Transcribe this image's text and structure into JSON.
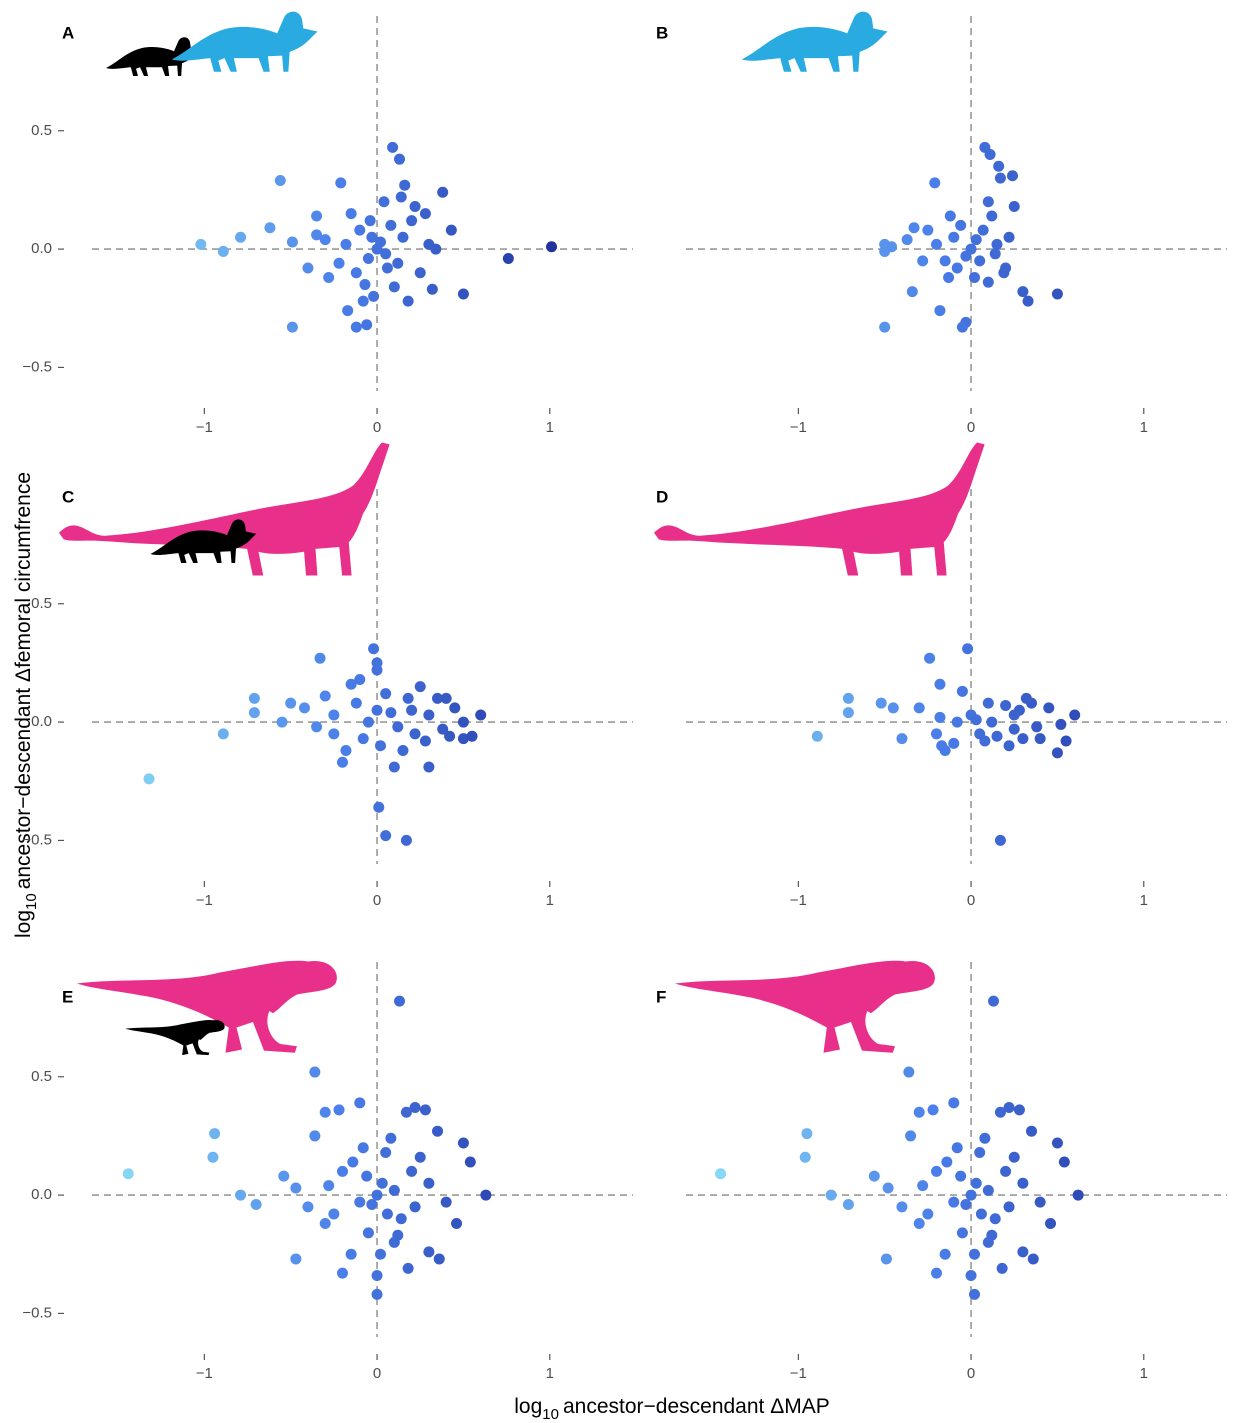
{
  "x_label": {
    "pre": "log",
    "sub": "10",
    "text": "ancestor−descendant ΔMAP"
  },
  "y_label": {
    "pre": "log",
    "sub": "10",
    "text": "ancestor−descendant Δfemoral circumfrence"
  },
  "chart_data": [
    {
      "type": "scatter",
      "panel_label": "A",
      "x": [
        -1.02,
        -0.89,
        -0.79,
        -0.62,
        -0.56,
        -0.49,
        -0.49,
        -0.35,
        -0.21,
        -0.17,
        -0.12,
        -0.06,
        0.09,
        0.13,
        0.16,
        0.38,
        0.43,
        0.32,
        0.5,
        0.76,
        1.01,
        0.34,
        0,
        0.02,
        -0.03,
        0.05,
        -0.05,
        0.08,
        -0.1,
        0.12,
        -0.12,
        0.15,
        -0.18,
        0.2,
        -0.22,
        0.25,
        -0.3,
        0.22,
        -0.28,
        0.1,
        -0.07,
        0.04,
        -0.02,
        0.3,
        -0.4,
        -0.35,
        0.18,
        -0.15,
        0.06,
        -0.04,
        0.14,
        0.28,
        -0.08
      ],
      "y": [
        0.02,
        -0.01,
        0.05,
        0.09,
        0.29,
        0.03,
        -0.33,
        0.14,
        0.28,
        -0.26,
        -0.33,
        -0.32,
        0.43,
        0.38,
        0.27,
        0.24,
        0.08,
        -0.17,
        -0.19,
        -0.04,
        0.01,
        0,
        0,
        0.03,
        0.05,
        -0.02,
        -0.04,
        0.1,
        0.08,
        -0.06,
        -0.1,
        0.05,
        0.02,
        0.12,
        -0.06,
        -0.1,
        0.04,
        0.18,
        -0.12,
        -0.16,
        -0.15,
        0.2,
        -0.2,
        0.02,
        -0.08,
        0.06,
        -0.22,
        0.15,
        -0.08,
        0.12,
        0.22,
        0.15,
        -0.22
      ],
      "xlim": [
        -1.65,
        1.25
      ],
      "ylim": [
        -0.6,
        0.85
      ],
      "xticks": [
        {
          "value": -1,
          "label": "−1"
        },
        0,
        1
      ],
      "yticks": [
        {
          "value": -0.5,
          "label": "−0.5"
        },
        {
          "value": 0,
          "label": "0.0"
        },
        0.5
      ],
      "reference_lines": {
        "x": 0,
        "y": 0
      },
      "colors": [
        "#90e6f6",
        "#4a7ee9",
        "#1a2490"
      ]
    },
    {
      "type": "scatter",
      "panel_label": "B",
      "x": [
        -0.5,
        -0.5,
        -0.5,
        -0.46,
        -0.37,
        -0.33,
        -0.21,
        -0.34,
        -0.18,
        -0.13,
        -0.03,
        -0.05,
        0.08,
        0.11,
        0.16,
        0.24,
        0.25,
        0.17,
        0.19,
        0.3,
        0.33,
        0.5,
        0.2,
        0.1,
        0.12,
        -0.1,
        -0.15,
        -0.2,
        -0.25,
        0,
        0.03,
        -0.03,
        0.05,
        0.07,
        -0.06,
        0.14,
        -0.08,
        0.02,
        0.1,
        -0.12,
        0.22,
        0.15,
        -0.28
      ],
      "y": [
        0.02,
        -0.01,
        -0.33,
        0.01,
        0.04,
        0.09,
        0.28,
        -0.18,
        -0.26,
        -0.12,
        -0.31,
        -0.33,
        0.43,
        0.4,
        0.35,
        0.31,
        0.18,
        0.3,
        -0.1,
        -0.18,
        -0.22,
        -0.19,
        -0.08,
        0.2,
        0.14,
        0.05,
        -0.05,
        0.02,
        0.08,
        0,
        0.04,
        -0.03,
        -0.05,
        0.08,
        0.1,
        -0.02,
        -0.08,
        -0.12,
        -0.14,
        0.14,
        0.05,
        0.02,
        -0.05
      ],
      "xlim": [
        -1.65,
        1.25
      ],
      "ylim": [
        -0.6,
        0.85
      ],
      "xticks": [
        {
          "value": -1,
          "label": "−1"
        },
        0,
        1
      ],
      "reference_lines": {
        "x": 0,
        "y": 0
      },
      "colors": [
        "#90e6f6",
        "#4a7ee9",
        "#1a2490"
      ]
    },
    {
      "type": "scatter",
      "panel_label": "C",
      "x": [
        -1.32,
        -0.89,
        -0.71,
        -0.71,
        -0.55,
        -0.5,
        -0.42,
        -0.33,
        -0.3,
        -0.35,
        -0.25,
        -0.2,
        -0.18,
        -0.15,
        -0.1,
        -0.12,
        -0.05,
        -0.02,
        0,
        0,
        0.01,
        0.05,
        0.17,
        0.1,
        0.05,
        0.08,
        0.12,
        0.18,
        0.2,
        0.22,
        0.25,
        0.3,
        0.3,
        0.35,
        0.38,
        0.4,
        0.45,
        0.5,
        0.5,
        0.55,
        0.6,
        -0.08,
        0.02,
        0.15,
        -0.25,
        0,
        0.28,
        0.42
      ],
      "y": [
        -0.24,
        -0.05,
        0.1,
        0.04,
        0,
        0.08,
        0.06,
        0.27,
        0.11,
        -0.02,
        -0.05,
        -0.17,
        -0.12,
        0.16,
        0.18,
        0.08,
        0,
        0.31,
        0.25,
        0.22,
        -0.36,
        -0.48,
        -0.5,
        -0.19,
        0.12,
        0.04,
        -0.02,
        0.1,
        0.05,
        -0.05,
        0.15,
        0.03,
        -0.19,
        0.1,
        -0.03,
        0.1,
        0.06,
        0,
        -0.07,
        -0.06,
        0.03,
        -0.07,
        -0.1,
        -0.12,
        0.03,
        0.05,
        -0.08,
        -0.06
      ],
      "xlim": [
        -1.65,
        1.25
      ],
      "ylim": [
        -0.6,
        0.85
      ],
      "xticks": [
        {
          "value": -1,
          "label": "−1"
        },
        0,
        1
      ],
      "yticks": [
        {
          "value": -0.5,
          "label": "−0.5"
        },
        {
          "value": 0,
          "label": "0.0"
        },
        0.5
      ],
      "reference_lines": {
        "x": 0,
        "y": 0
      },
      "colors": [
        "#90e6f6",
        "#4a7ee9",
        "#1a2490"
      ]
    },
    {
      "type": "scatter",
      "panel_label": "D",
      "x": [
        -0.89,
        -0.71,
        -0.71,
        -0.52,
        -0.45,
        -0.4,
        -0.3,
        -0.24,
        -0.2,
        -0.18,
        -0.17,
        -0.18,
        -0.15,
        -0.1,
        -0.08,
        -0.05,
        -0.02,
        0,
        0.03,
        0.05,
        0.1,
        0.12,
        0.15,
        0.17,
        0.2,
        0.25,
        0.28,
        0.3,
        0.35,
        0.38,
        0.4,
        0.45,
        0.5,
        0.52,
        0.55,
        0.6,
        0.22,
        0.32,
        0.08,
        0.25
      ],
      "y": [
        -0.06,
        0.1,
        0.04,
        0.08,
        0.06,
        -0.07,
        0.06,
        0.27,
        -0.05,
        0.02,
        -0.1,
        0.16,
        -0.12,
        -0.09,
        0,
        0.13,
        0.31,
        0.03,
        0.01,
        -0.05,
        0.08,
        0,
        -0.06,
        -0.5,
        0.07,
        -0.03,
        0.05,
        -0.07,
        0.08,
        -0.02,
        -0.07,
        0.06,
        -0.13,
        -0.01,
        -0.08,
        0.03,
        -0.1,
        0.1,
        -0.08,
        0.03
      ],
      "xlim": [
        -1.65,
        1.25
      ],
      "ylim": [
        -0.6,
        0.85
      ],
      "xticks": [
        {
          "value": -1,
          "label": "−1"
        },
        0,
        1
      ],
      "reference_lines": {
        "x": 0,
        "y": 0
      },
      "colors": [
        "#90e6f6",
        "#4a7ee9",
        "#1a2490"
      ]
    },
    {
      "type": "scatter",
      "panel_label": "E",
      "x": [
        -1.44,
        -0.95,
        -0.94,
        -0.79,
        -0.7,
        -0.54,
        -0.47,
        -0.47,
        -0.36,
        -0.36,
        -0.3,
        -0.22,
        -0.2,
        -0.1,
        0.13,
        0.17,
        0.22,
        0.28,
        0.35,
        0.5,
        0.54,
        0.63,
        0.46,
        0.36,
        0.3,
        0.18,
        0,
        0,
        -0.15,
        0.1,
        -0.3,
        -0.4,
        0.4,
        -0.2,
        0.2,
        0,
        0.03,
        -0.03,
        0.06,
        -0.06,
        0.1,
        -0.1,
        0.14,
        -0.14,
        0.05,
        -0.05,
        0.22,
        -0.25,
        0.3,
        0.08,
        -0.08,
        0.25,
        -0.28,
        0.12,
        0.02
      ],
      "y": [
        0.09,
        0.16,
        0.26,
        0,
        -0.04,
        0.08,
        0.03,
        -0.27,
        0.52,
        0.25,
        0.35,
        0.36,
        -0.33,
        0.39,
        0.82,
        0.35,
        0.37,
        0.36,
        0.27,
        0.22,
        0.14,
        0,
        -0.12,
        -0.27,
        -0.24,
        -0.31,
        -0.42,
        -0.34,
        -0.25,
        -0.2,
        -0.12,
        -0.05,
        -0.03,
        0.1,
        0.1,
        0,
        0.05,
        -0.04,
        -0.08,
        0.08,
        0.02,
        -0.03,
        -0.1,
        0.14,
        0.18,
        -0.16,
        -0.05,
        -0.08,
        0.05,
        0.24,
        0.2,
        0.16,
        0.04,
        -0.17,
        -0.25
      ],
      "xlim": [
        -1.65,
        1.25
      ],
      "ylim": [
        -0.6,
        0.85
      ],
      "xticks": [
        {
          "value": -1,
          "label": "−1"
        },
        0,
        1
      ],
      "yticks": [
        {
          "value": -0.5,
          "label": "−0.5"
        },
        {
          "value": 0,
          "label": "0.0"
        },
        0.5
      ],
      "reference_lines": {
        "x": 0,
        "y": 0
      },
      "colors": [
        "#90e6f6",
        "#4a7ee9",
        "#1a2490"
      ]
    },
    {
      "type": "scatter",
      "panel_label": "F",
      "x": [
        -1.45,
        -0.96,
        -0.95,
        -0.81,
        -0.71,
        -0.56,
        -0.48,
        -0.49,
        -0.36,
        -0.35,
        -0.3,
        -0.22,
        -0.2,
        -0.1,
        0.13,
        0.17,
        0.22,
        0.28,
        0.35,
        0.5,
        0.54,
        0.62,
        0.46,
        0.36,
        0.3,
        0.18,
        0.02,
        0,
        -0.15,
        0.1,
        -0.3,
        -0.4,
        0.4,
        -0.2,
        0.2,
        0,
        0.03,
        -0.03,
        0.06,
        -0.06,
        0.1,
        -0.1,
        0.14,
        -0.14,
        0.05,
        -0.05,
        0.22,
        -0.25,
        0.3,
        0.08,
        -0.08,
        0.25,
        -0.28,
        0.12,
        0.02
      ],
      "y": [
        0.09,
        0.16,
        0.26,
        0,
        -0.04,
        0.08,
        0.03,
        -0.27,
        0.52,
        0.25,
        0.35,
        0.36,
        -0.33,
        0.39,
        0.82,
        0.35,
        0.37,
        0.36,
        0.27,
        0.22,
        0.14,
        0,
        -0.12,
        -0.27,
        -0.24,
        -0.31,
        -0.42,
        -0.34,
        -0.25,
        -0.2,
        -0.12,
        -0.05,
        -0.03,
        0.1,
        0.1,
        0,
        0.05,
        -0.04,
        -0.08,
        0.08,
        0.02,
        -0.03,
        -0.1,
        0.14,
        0.18,
        -0.16,
        -0.05,
        -0.08,
        0.05,
        0.24,
        0.2,
        0.16,
        0.04,
        -0.17,
        -0.25
      ],
      "xlim": [
        -1.65,
        1.25
      ],
      "ylim": [
        -0.6,
        0.85
      ],
      "xticks": [
        {
          "value": -1,
          "label": "−1"
        },
        0,
        1
      ],
      "reference_lines": {
        "x": 0,
        "y": 0
      },
      "colors": [
        "#90e6f6",
        "#4a7ee9",
        "#1a2490"
      ]
    }
  ]
}
